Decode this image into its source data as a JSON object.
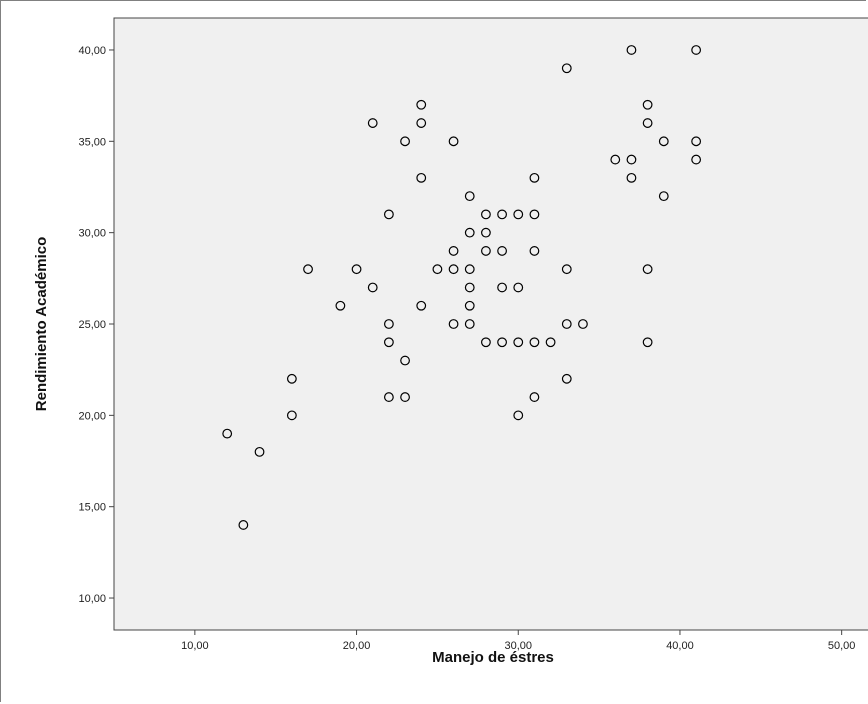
{
  "chart_data": {
    "type": "scatter",
    "title": "",
    "xlabel": "Manejo de éstres",
    "ylabel": "Rendimiento Académico",
    "xlim": [
      5,
      52
    ],
    "ylim": [
      8.25,
      41.75
    ],
    "xticks": [
      10,
      20,
      30,
      40,
      50
    ],
    "yticks": [
      10,
      15,
      20,
      25,
      30,
      35,
      40
    ],
    "xtick_labels": [
      "10,00",
      "20,00",
      "30,00",
      "40,00",
      "50,00"
    ],
    "ytick_labels": [
      "10,00",
      "15,00",
      "20,00",
      "25,00",
      "30,00",
      "35,00",
      "40,00"
    ],
    "grid": false,
    "legend": "none",
    "colors": {
      "plot_bg": "#f0f0f0",
      "marker_stroke": "#000000",
      "marker_fill": "#f0f0f0"
    },
    "points": [
      [
        12,
        19
      ],
      [
        13,
        14
      ],
      [
        14,
        18
      ],
      [
        16,
        22
      ],
      [
        16,
        20
      ],
      [
        17,
        28
      ],
      [
        19,
        26
      ],
      [
        20,
        28
      ],
      [
        21,
        36
      ],
      [
        21,
        27
      ],
      [
        22,
        31
      ],
      [
        22,
        25
      ],
      [
        22,
        24
      ],
      [
        22,
        21
      ],
      [
        23,
        35
      ],
      [
        23,
        23
      ],
      [
        23,
        21
      ],
      [
        24,
        37
      ],
      [
        24,
        36
      ],
      [
        24,
        33
      ],
      [
        24,
        26
      ],
      [
        25,
        28
      ],
      [
        26,
        35
      ],
      [
        26,
        29
      ],
      [
        26,
        28
      ],
      [
        26,
        25
      ],
      [
        27,
        32
      ],
      [
        27,
        30
      ],
      [
        27,
        28
      ],
      [
        27,
        27
      ],
      [
        27,
        26
      ],
      [
        27,
        25
      ],
      [
        28,
        31
      ],
      [
        28,
        30
      ],
      [
        28,
        29
      ],
      [
        28,
        24
      ],
      [
        29,
        31
      ],
      [
        29,
        29
      ],
      [
        29,
        27
      ],
      [
        29,
        24
      ],
      [
        30,
        31
      ],
      [
        30,
        27
      ],
      [
        30,
        24
      ],
      [
        30,
        20
      ],
      [
        31,
        33
      ],
      [
        31,
        31
      ],
      [
        31,
        29
      ],
      [
        31,
        24
      ],
      [
        31,
        21
      ],
      [
        32,
        24
      ],
      [
        33,
        39
      ],
      [
        33,
        28
      ],
      [
        33,
        25
      ],
      [
        33,
        22
      ],
      [
        34,
        25
      ],
      [
        36,
        34
      ],
      [
        37,
        40
      ],
      [
        37,
        34
      ],
      [
        37,
        33
      ],
      [
        38,
        37
      ],
      [
        38,
        36
      ],
      [
        38,
        28
      ],
      [
        38,
        24
      ],
      [
        39,
        35
      ],
      [
        39,
        32
      ],
      [
        41,
        40
      ],
      [
        41,
        35
      ],
      [
        41,
        34
      ]
    ]
  }
}
